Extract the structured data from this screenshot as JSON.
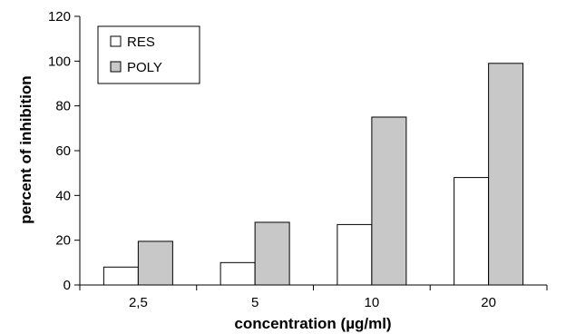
{
  "chart_data": {
    "type": "bar",
    "categories": [
      "2,5",
      "5",
      "10",
      "20"
    ],
    "series": [
      {
        "name": "RES",
        "values": [
          8,
          10,
          27,
          48
        ],
        "color": "#ffffff"
      },
      {
        "name": "POLY",
        "values": [
          19.5,
          28,
          75,
          99
        ],
        "color": "#c8c8c8"
      }
    ],
    "xlabel": "concentration (µg/ml)",
    "ylabel": "percent of inhibition",
    "ylim": [
      0,
      120
    ],
    "yticks": [
      "0",
      "20",
      "40",
      "60",
      "80",
      "100",
      "120"
    ],
    "grid": false,
    "legend_position": "top-left"
  }
}
